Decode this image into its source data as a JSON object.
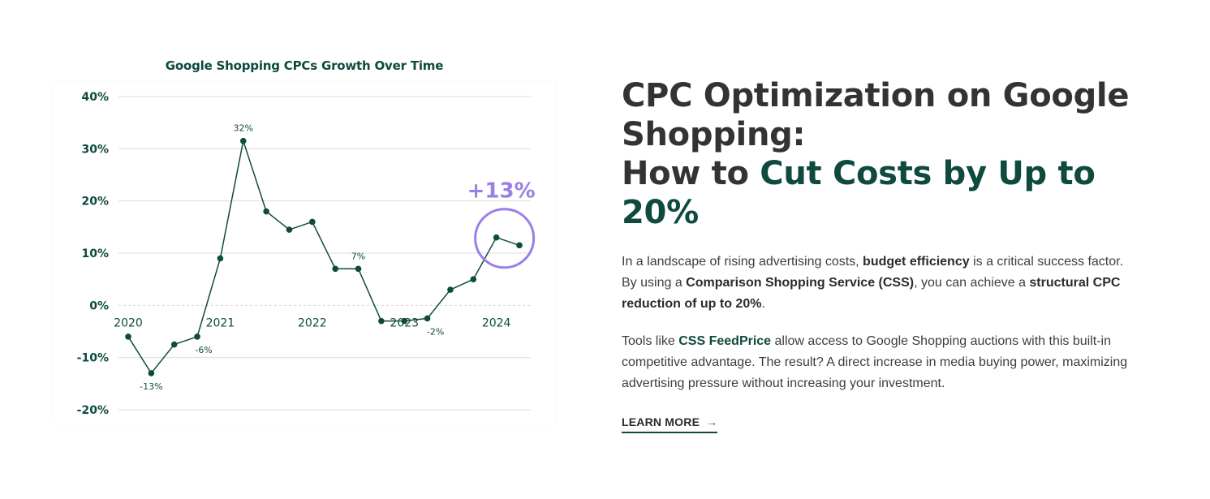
{
  "chart_data": {
    "type": "line",
    "title": "Google Shopping CPCs Growth Over Time",
    "ylim": [
      -20,
      40
    ],
    "y_ticks": [
      "40%",
      "30%",
      "20%",
      "10%",
      "0%",
      "-10%",
      "-20%"
    ],
    "y_tick_values": [
      40,
      30,
      20,
      10,
      0,
      -10,
      -20
    ],
    "x_tick_labels": [
      "2020",
      "2021",
      "2022",
      "2023",
      "2024"
    ],
    "x": [
      2020.0,
      2020.25,
      2020.5,
      2020.75,
      2021.0,
      2021.25,
      2021.5,
      2021.75,
      2022.0,
      2022.25,
      2022.5,
      2022.75,
      2023.0,
      2023.25,
      2023.5,
      2023.75,
      2024.0,
      2024.25
    ],
    "values": [
      -6,
      -13,
      -7.5,
      -6,
      9,
      31.5,
      18,
      14.5,
      16,
      7,
      7,
      -3,
      -3,
      -2.5,
      3,
      5,
      13,
      11.5
    ],
    "data_labels": [
      {
        "index": 1,
        "text": "-13%"
      },
      {
        "index": 3,
        "text": "-6%"
      },
      {
        "index": 5,
        "text": "32%"
      },
      {
        "index": 10,
        "text": "7%"
      },
      {
        "index": 13,
        "text": "-2%"
      }
    ],
    "highlight": {
      "index": 16,
      "text": "+13%",
      "color": "#9b7fe8"
    },
    "grid": true,
    "line_color": "#0f4a3e",
    "axis_label_color": "#0f4a3e"
  },
  "content": {
    "headline_line1": "CPC Optimization on Google Shopping:",
    "headline_prefix": "How to ",
    "headline_accent": "Cut Costs by Up to 20%",
    "p1_a": "In a landscape of rising advertising costs, ",
    "p1_b1": "budget efficiency",
    "p1_c": " is a critical success factor. By using a ",
    "p1_b2": "Comparison Shopping Service (CSS)",
    "p1_d": ", you can achieve a ",
    "p1_b3": "structural CPC reduction of up to 20%",
    "p1_e": ".",
    "p2_a": "Tools like ",
    "p2_link": "CSS FeedPrice",
    "p2_b": " allow access to Google Shopping auctions with this built-in competitive advantage. The result? A direct increase in media buying power, maximizing advertising pressure without increasing your investment.",
    "learn_more": "LEARN MORE",
    "arrow": "→"
  },
  "colors": {
    "brand": "#0f4a3e",
    "highlight": "#9b7fe8",
    "text": "#333333"
  }
}
